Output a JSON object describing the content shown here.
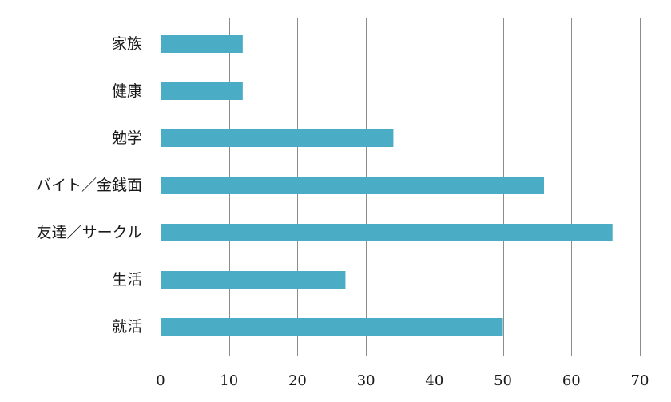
{
  "chart_data": {
    "type": "bar",
    "orientation": "horizontal",
    "categories": [
      "家族",
      "健康",
      "勉学",
      "バイト／金銭面",
      "友達／サークル",
      "生活",
      "就活"
    ],
    "values": [
      12,
      12,
      34,
      56,
      66,
      27,
      50
    ],
    "xlim": [
      0,
      70
    ],
    "x_ticks": [
      0,
      10,
      20,
      30,
      40,
      50,
      60,
      70
    ],
    "x_tick_labels": [
      "0",
      "10",
      "20",
      "30",
      "40",
      "50",
      "60",
      "70"
    ],
    "title": "",
    "xlabel": "",
    "ylabel": "",
    "grid": "vertical",
    "legend": "none",
    "bar_color": "#4bacc6",
    "grid_color": "#8c8c8c"
  }
}
